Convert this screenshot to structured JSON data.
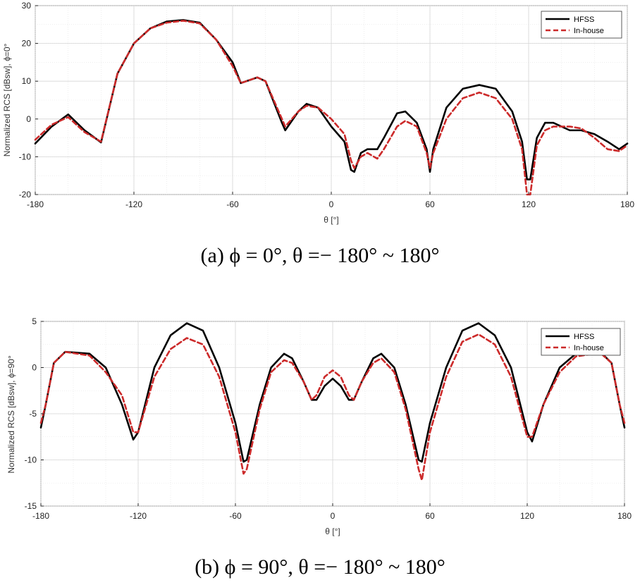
{
  "chart_data": [
    {
      "type": "line",
      "caption": "(a)  ϕ = 0°,  θ =− 180° ~ 180°",
      "xlabel": "θ [°]",
      "ylabel": "Normalized RCS [dBsw], ϕ=0°",
      "xlim": [
        -180,
        180
      ],
      "ylim": [
        -20,
        30
      ],
      "xticks": [
        -180,
        -120,
        -60,
        0,
        60,
        120,
        180
      ],
      "yticks": [
        -20,
        -10,
        0,
        10,
        20,
        30
      ],
      "grid": true,
      "legend_position": "top-right",
      "series": [
        {
          "name": "HFSS",
          "color": "#000000",
          "style": "solid",
          "points": [
            [
              -180,
              -6.5
            ],
            [
              -170,
              -2
            ],
            [
              -160,
              1.2
            ],
            [
              -150,
              -3
            ],
            [
              -140,
              -6.2
            ],
            [
              -130,
              12
            ],
            [
              -120,
              20
            ],
            [
              -110,
              24
            ],
            [
              -100,
              25.8
            ],
            [
              -90,
              26.2
            ],
            [
              -80,
              25.5
            ],
            [
              -70,
              21
            ],
            [
              -60,
              15
            ],
            [
              -55,
              9.5
            ],
            [
              -45,
              11
            ],
            [
              -40,
              10
            ],
            [
              -30,
              -1
            ],
            [
              -28,
              -3
            ],
            [
              -20,
              2
            ],
            [
              -15,
              4
            ],
            [
              -8,
              3
            ],
            [
              0,
              -2
            ],
            [
              8,
              -6
            ],
            [
              12,
              -13.5
            ],
            [
              14,
              -14
            ],
            [
              18,
              -9
            ],
            [
              22,
              -8
            ],
            [
              28,
              -8
            ],
            [
              32,
              -5
            ],
            [
              40,
              1.5
            ],
            [
              45,
              2
            ],
            [
              52,
              -1
            ],
            [
              58,
              -8
            ],
            [
              60,
              -14
            ],
            [
              62,
              -8
            ],
            [
              70,
              3
            ],
            [
              80,
              8
            ],
            [
              90,
              9
            ],
            [
              100,
              8
            ],
            [
              110,
              2
            ],
            [
              116,
              -6
            ],
            [
              119,
              -16
            ],
            [
              121,
              -16
            ],
            [
              125,
              -5
            ],
            [
              130,
              -1
            ],
            [
              135,
              -1
            ],
            [
              145,
              -3
            ],
            [
              152,
              -3
            ],
            [
              160,
              -4
            ],
            [
              168,
              -6
            ],
            [
              175,
              -8
            ],
            [
              180,
              -6.5
            ]
          ]
        },
        {
          "name": "In-house",
          "color": "#cc2a2a",
          "style": "dashed",
          "points": [
            [
              -180,
              -5.5
            ],
            [
              -170,
              -1.5
            ],
            [
              -160,
              0.5
            ],
            [
              -150,
              -3.5
            ],
            [
              -140,
              -6
            ],
            [
              -130,
              12
            ],
            [
              -120,
              20
            ],
            [
              -110,
              24
            ],
            [
              -100,
              25.5
            ],
            [
              -90,
              26
            ],
            [
              -80,
              25.3
            ],
            [
              -70,
              21
            ],
            [
              -60,
              14
            ],
            [
              -55,
              9.5
            ],
            [
              -45,
              11
            ],
            [
              -40,
              10
            ],
            [
              -30,
              0
            ],
            [
              -28,
              -2
            ],
            [
              -20,
              2
            ],
            [
              -15,
              3.5
            ],
            [
              -8,
              3
            ],
            [
              0,
              0
            ],
            [
              8,
              -4
            ],
            [
              12,
              -11
            ],
            [
              14,
              -13
            ],
            [
              18,
              -10
            ],
            [
              22,
              -9
            ],
            [
              28,
              -10.5
            ],
            [
              32,
              -8
            ],
            [
              40,
              -2
            ],
            [
              45,
              -0.5
            ],
            [
              52,
              -2
            ],
            [
              58,
              -9
            ],
            [
              60,
              -13
            ],
            [
              62,
              -9
            ],
            [
              70,
              0
            ],
            [
              80,
              5.5
            ],
            [
              90,
              7
            ],
            [
              100,
              5.5
            ],
            [
              110,
              0
            ],
            [
              116,
              -8
            ],
            [
              119,
              -20
            ],
            [
              121,
              -20
            ],
            [
              125,
              -7
            ],
            [
              130,
              -3
            ],
            [
              135,
              -2
            ],
            [
              145,
              -2
            ],
            [
              152,
              -2.5
            ],
            [
              160,
              -5
            ],
            [
              168,
              -8
            ],
            [
              175,
              -8.5
            ],
            [
              180,
              -7
            ]
          ]
        }
      ]
    },
    {
      "type": "line",
      "caption": "(b)  ϕ = 90°,  θ =− 180° ~ 180°",
      "xlabel": "θ [°]",
      "ylabel": "Normalized RCS [dBsw], ϕ=90°",
      "xlim": [
        -180,
        180
      ],
      "ylim": [
        -15,
        5
      ],
      "xticks": [
        -180,
        -120,
        -60,
        0,
        60,
        120,
        180
      ],
      "yticks": [
        -15,
        -10,
        -5,
        0,
        5
      ],
      "grid": true,
      "legend_position": "top-right",
      "series": [
        {
          "name": "HFSS",
          "color": "#000000",
          "style": "solid",
          "points": [
            [
              -180,
              -6.5
            ],
            [
              -177,
              -4
            ],
            [
              -172,
              0.5
            ],
            [
              -165,
              1.7
            ],
            [
              -150,
              1.5
            ],
            [
              -140,
              0
            ],
            [
              -130,
              -4
            ],
            [
              -123,
              -7.8
            ],
            [
              -120,
              -7
            ],
            [
              -110,
              0
            ],
            [
              -100,
              3.5
            ],
            [
              -90,
              4.8
            ],
            [
              -80,
              4
            ],
            [
              -70,
              0
            ],
            [
              -60,
              -6
            ],
            [
              -55,
              -10.2
            ],
            [
              -53,
              -10
            ],
            [
              -45,
              -4
            ],
            [
              -38,
              0
            ],
            [
              -30,
              1.5
            ],
            [
              -25,
              1
            ],
            [
              -18,
              -1.5
            ],
            [
              -13,
              -3.5
            ],
            [
              -10,
              -3.5
            ],
            [
              -5,
              -2
            ],
            [
              0,
              -1.2
            ],
            [
              5,
              -2
            ],
            [
              10,
              -3.5
            ],
            [
              13,
              -3.5
            ],
            [
              18,
              -1.5
            ],
            [
              25,
              1
            ],
            [
              30,
              1.5
            ],
            [
              38,
              0
            ],
            [
              45,
              -4
            ],
            [
              53,
              -10
            ],
            [
              55,
              -10.2
            ],
            [
              60,
              -6
            ],
            [
              70,
              0
            ],
            [
              80,
              4
            ],
            [
              90,
              4.8
            ],
            [
              100,
              3.5
            ],
            [
              110,
              0
            ],
            [
              120,
              -7
            ],
            [
              123,
              -8
            ],
            [
              130,
              -4
            ],
            [
              140,
              0
            ],
            [
              150,
              1.5
            ],
            [
              165,
              1.7
            ],
            [
              172,
              0.5
            ],
            [
              177,
              -4
            ],
            [
              180,
              -6.5
            ]
          ]
        },
        {
          "name": "In-house",
          "color": "#cc2a2a",
          "style": "dashed",
          "points": [
            [
              -180,
              -6
            ],
            [
              -177,
              -4
            ],
            [
              -172,
              0.5
            ],
            [
              -165,
              1.7
            ],
            [
              -150,
              1.3
            ],
            [
              -140,
              -0.5
            ],
            [
              -130,
              -3
            ],
            [
              -123,
              -7
            ],
            [
              -120,
              -7
            ],
            [
              -110,
              -1
            ],
            [
              -100,
              2
            ],
            [
              -90,
              3.2
            ],
            [
              -80,
              2.5
            ],
            [
              -70,
              -1
            ],
            [
              -60,
              -7
            ],
            [
              -55,
              -11.5
            ],
            [
              -53,
              -11
            ],
            [
              -45,
              -4.5
            ],
            [
              -38,
              -0.5
            ],
            [
              -30,
              0.8
            ],
            [
              -25,
              0.5
            ],
            [
              -18,
              -1.5
            ],
            [
              -13,
              -3.5
            ],
            [
              -10,
              -3
            ],
            [
              -5,
              -1
            ],
            [
              0,
              -0.3
            ],
            [
              5,
              -1
            ],
            [
              10,
              -3
            ],
            [
              13,
              -3.5
            ],
            [
              18,
              -1.5
            ],
            [
              25,
              0.5
            ],
            [
              30,
              1
            ],
            [
              38,
              -0.5
            ],
            [
              45,
              -4.5
            ],
            [
              53,
              -11
            ],
            [
              55,
              -12.2
            ],
            [
              60,
              -7
            ],
            [
              70,
              -1
            ],
            [
              80,
              2.8
            ],
            [
              90,
              3.6
            ],
            [
              100,
              2.5
            ],
            [
              110,
              -1
            ],
            [
              120,
              -7.5
            ],
            [
              123,
              -7.5
            ],
            [
              130,
              -4
            ],
            [
              140,
              -0.5
            ],
            [
              150,
              1.2
            ],
            [
              165,
              1.6
            ],
            [
              172,
              0.5
            ],
            [
              177,
              -4
            ],
            [
              180,
              -6
            ]
          ]
        }
      ]
    }
  ]
}
